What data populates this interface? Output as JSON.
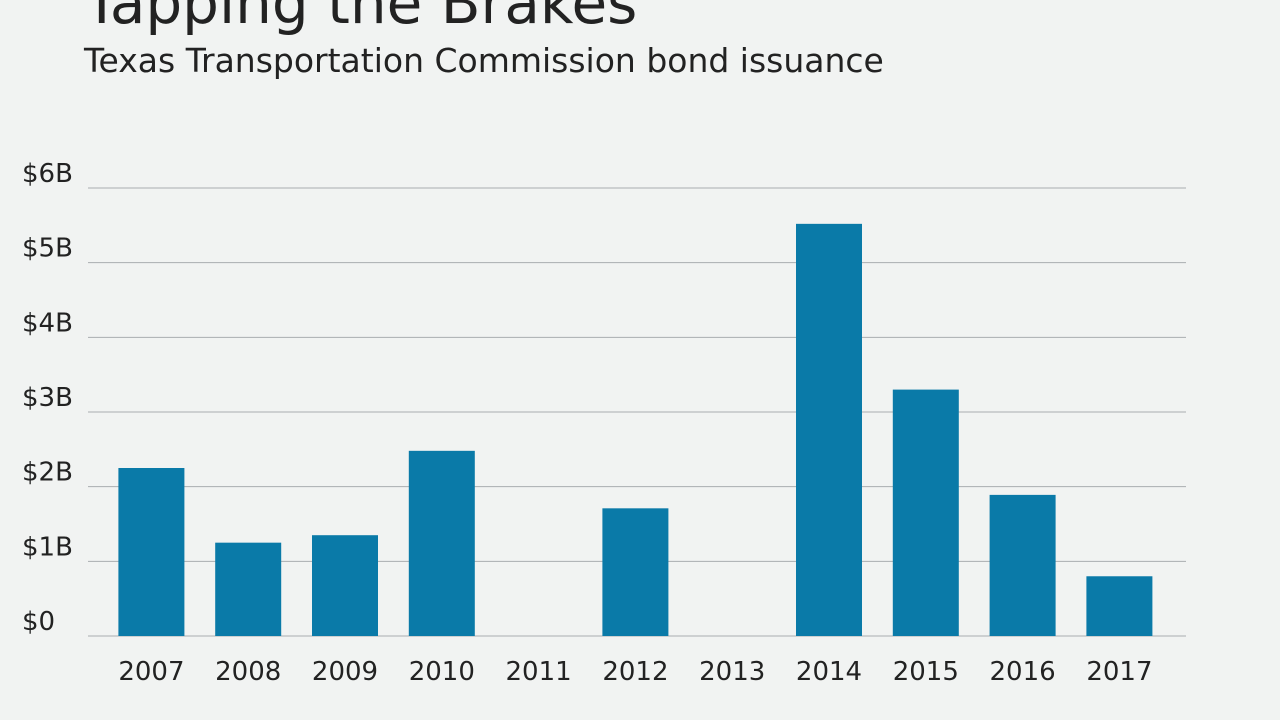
{
  "chart_data": {
    "type": "bar",
    "title": "Tapping the Brakes",
    "subtitle": "Texas Transportation Commission bond issuance",
    "xlabel": "",
    "ylabel": "",
    "categories": [
      "2007",
      "2008",
      "2009",
      "2010",
      "2011",
      "2012",
      "2013",
      "2014",
      "2015",
      "2016",
      "2017"
    ],
    "values": [
      2.25,
      1.25,
      1.35,
      2.48,
      0,
      1.71,
      0,
      5.52,
      3.3,
      1.89,
      0.8
    ],
    "ylim": [
      0,
      6
    ],
    "yticks": [
      0,
      1,
      2,
      3,
      4,
      5,
      6
    ],
    "ytick_labels": [
      "$0",
      "$1B",
      "$2B",
      "$3B",
      "$4B",
      "$5B",
      "$6B"
    ],
    "grid": true,
    "legend": "none",
    "colors": {
      "bar": "#0a7aa8",
      "grid": "#a9aeb0",
      "background": "#f1f3f2"
    }
  }
}
